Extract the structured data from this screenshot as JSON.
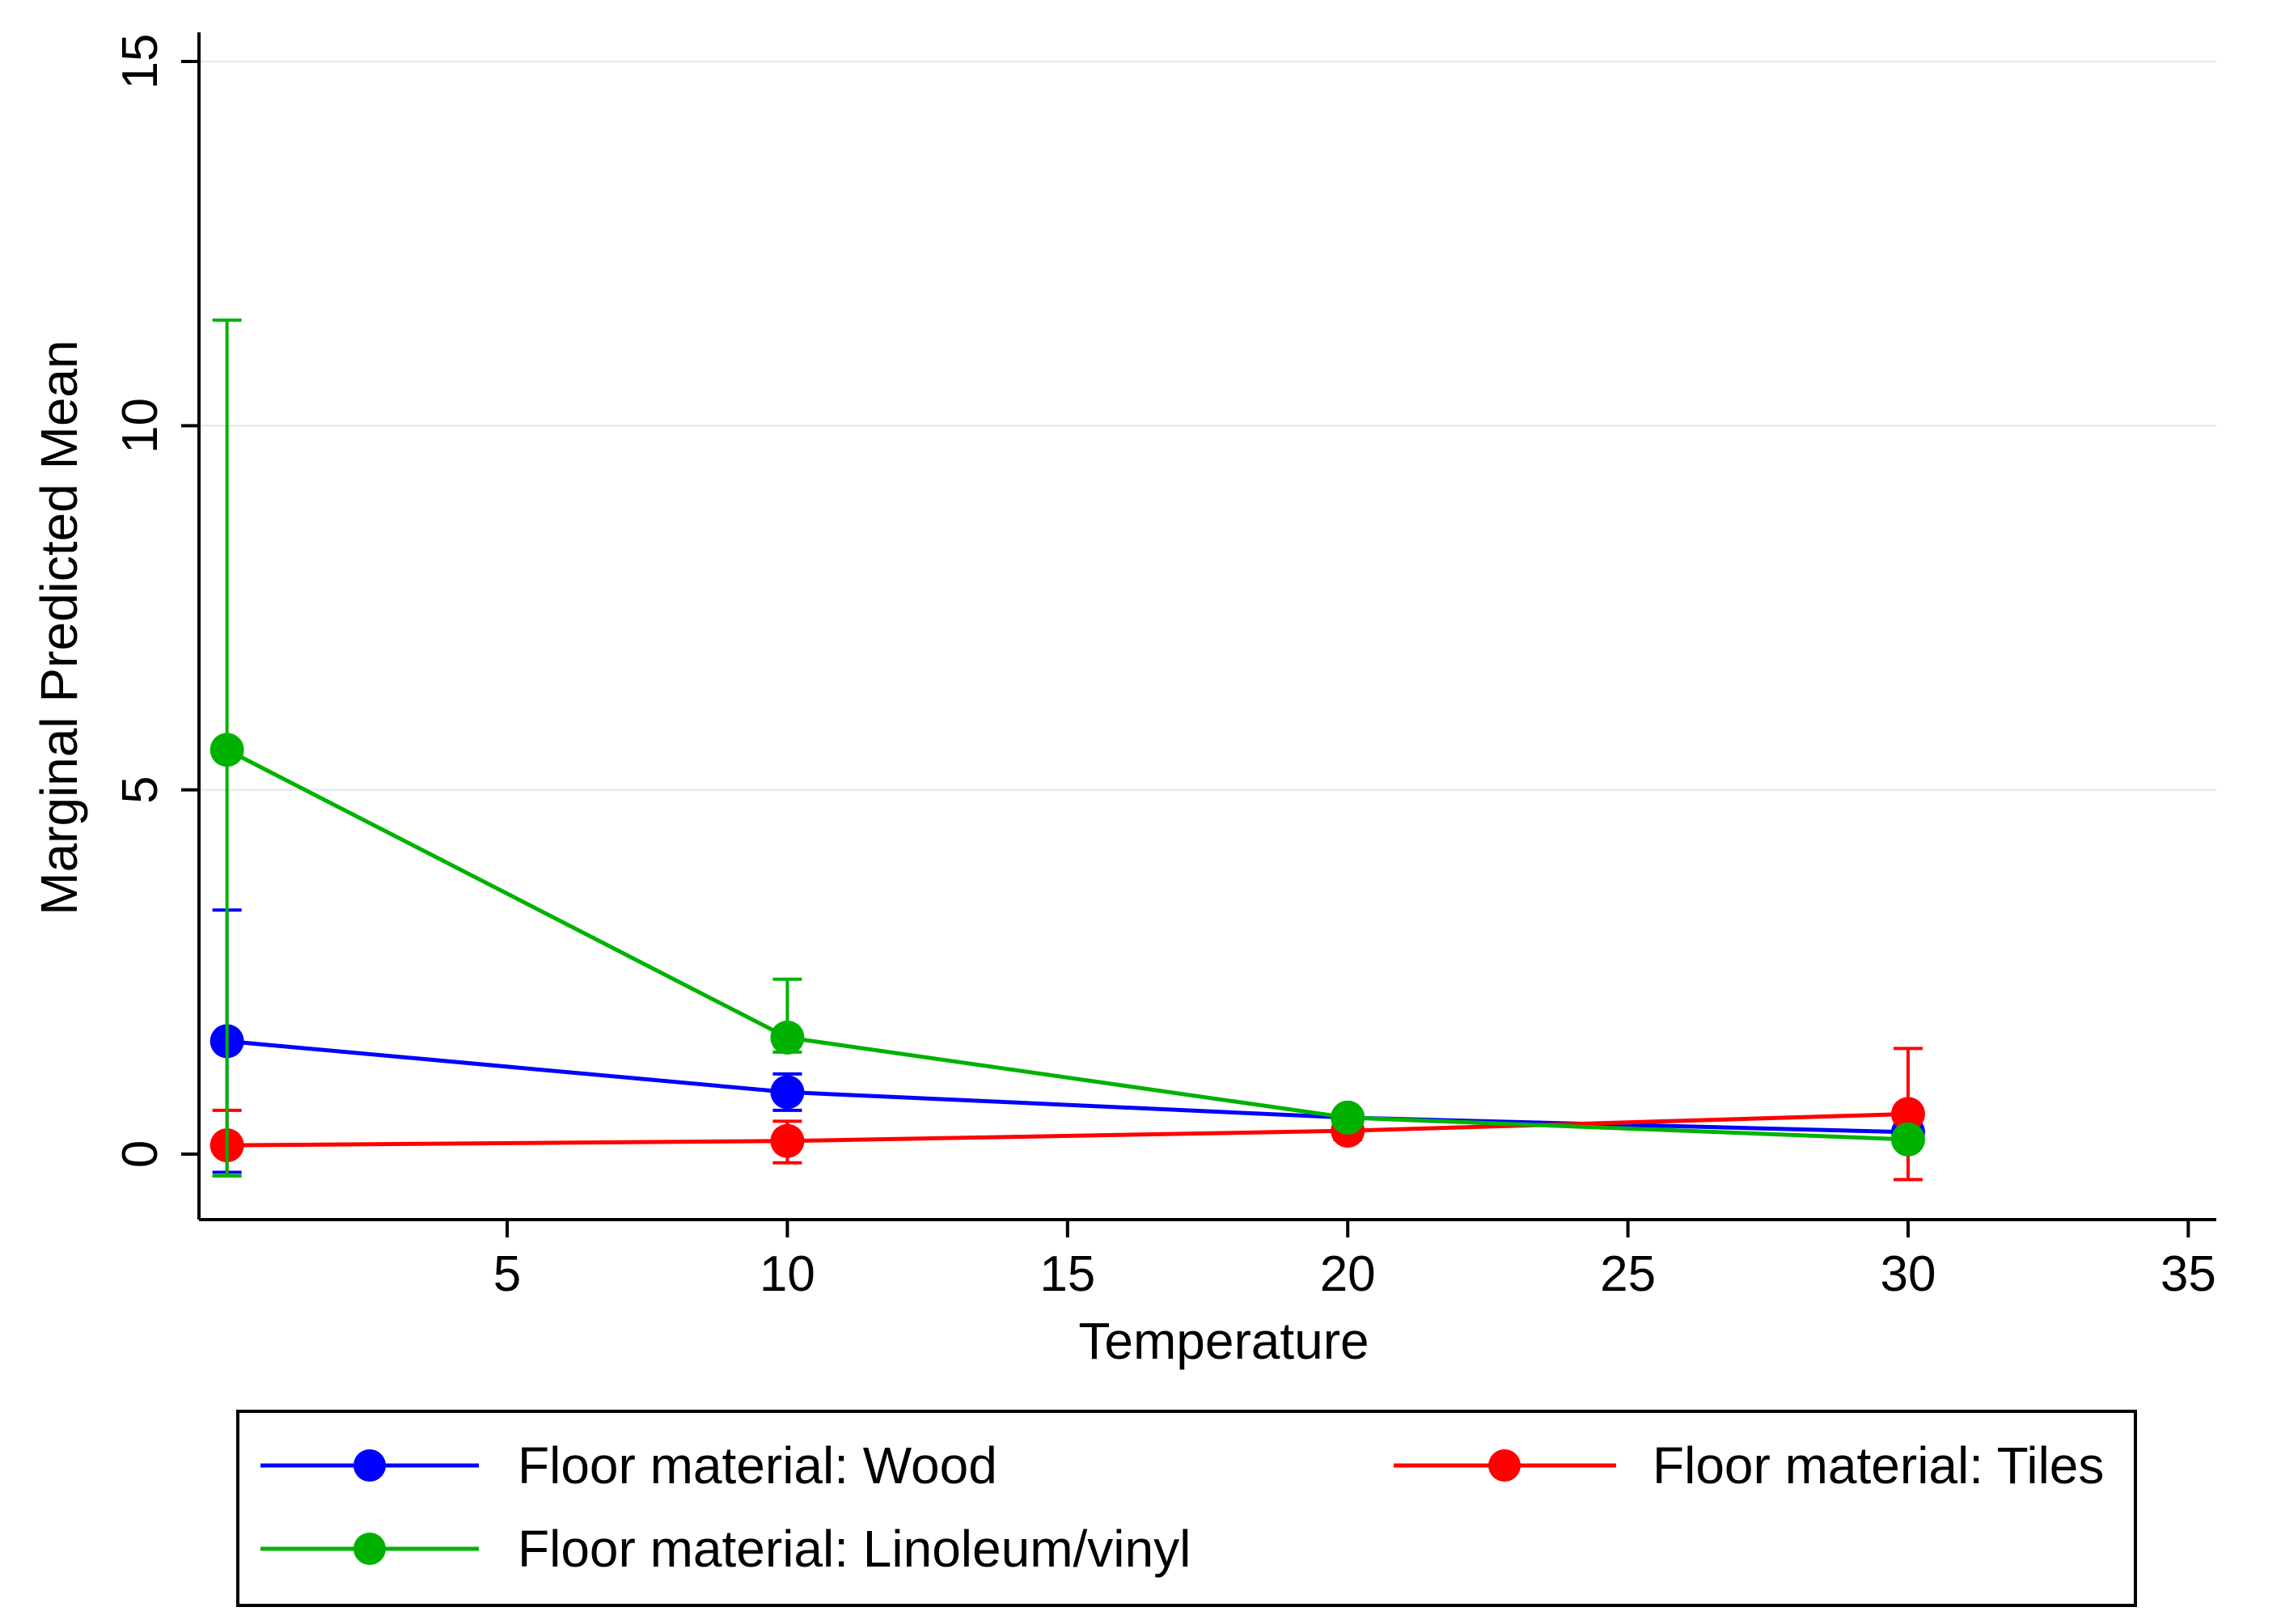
{
  "chart_data": {
    "type": "line",
    "title": "",
    "xlabel": "Temperature",
    "ylabel": "Marginal Predicted Mean",
    "xlim": [
      -0.5,
      35.5
    ],
    "ylim": [
      -0.9,
      15.4
    ],
    "xticks": [
      5,
      10,
      15,
      20,
      25,
      30,
      35
    ],
    "yticks": [
      0,
      5,
      10,
      15
    ],
    "grid": true,
    "legend_position": "bottom",
    "series": [
      {
        "name": "Floor material: Wood",
        "color": "#0000ff",
        "x": [
          0,
          10,
          20,
          30
        ],
        "y": [
          1.55,
          0.85,
          0.5,
          0.3
        ],
        "ci_low": [
          -0.25,
          0.6,
          0.4,
          0.2
        ],
        "ci_high": [
          3.35,
          1.1,
          0.6,
          0.4
        ]
      },
      {
        "name": "Floor material: Tiles",
        "color": "#ff0000",
        "x": [
          0,
          10,
          20,
          30
        ],
        "y": [
          0.12,
          0.18,
          0.32,
          0.55
        ],
        "ci_low": [
          -0.3,
          -0.12,
          0.2,
          -0.35
        ],
        "ci_high": [
          0.6,
          0.45,
          0.45,
          1.45
        ]
      },
      {
        "name": "Floor material: Linoleum/vinyl",
        "color": "#00b200",
        "x": [
          0,
          10,
          20,
          30
        ],
        "y": [
          5.55,
          1.6,
          0.5,
          0.2
        ],
        "ci_low": [
          -0.3,
          1.4,
          0.45,
          0.12
        ],
        "ci_high": [
          11.45,
          2.4,
          0.55,
          0.28
        ]
      }
    ]
  }
}
